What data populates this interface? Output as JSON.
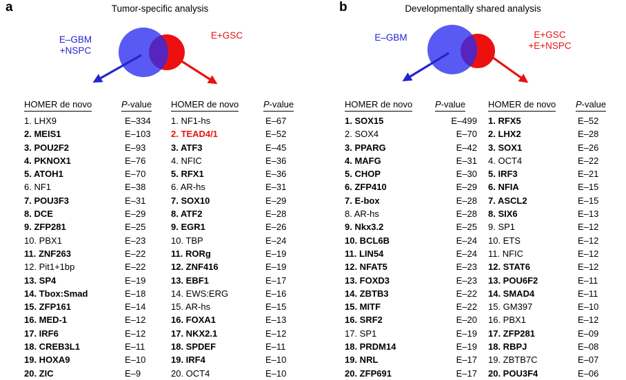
{
  "colors": {
    "label_blue": "#2323d0",
    "label_red": "#e8120e",
    "venn_blue": "#2a2cf0",
    "venn_red": "#ee0f0f"
  },
  "panels": [
    {
      "label": "a",
      "title": "Tumor-specific analysis",
      "venn": {
        "left_label_lines": [
          "E–GBM",
          "+NSPC"
        ],
        "right_label_lines": [
          "E+GSC"
        ]
      },
      "columns": [
        {
          "header": "HOMER de novo",
          "pheader_italic": "P",
          "pheader_rest": "-value",
          "value_align": "left",
          "rows": [
            {
              "rank": 1,
              "name": "LHX9",
              "value": "E–334",
              "bold": false,
              "red": false
            },
            {
              "rank": 2,
              "name": "MEIS1",
              "value": "E–103",
              "bold": true,
              "red": false
            },
            {
              "rank": 3,
              "name": "POU2F2",
              "value": "E–93",
              "bold": true,
              "red": false
            },
            {
              "rank": 4,
              "name": "PKNOX1",
              "value": "E–76",
              "bold": true,
              "red": false
            },
            {
              "rank": 5,
              "name": "ATOH1",
              "value": "E–70",
              "bold": true,
              "red": false
            },
            {
              "rank": 6,
              "name": "NF1",
              "value": "E–38",
              "bold": false,
              "red": false
            },
            {
              "rank": 7,
              "name": "POU3F3",
              "value": "E–31",
              "bold": true,
              "red": false
            },
            {
              "rank": 8,
              "name": "DCE",
              "value": "E–29",
              "bold": true,
              "red": false
            },
            {
              "rank": 9,
              "name": "ZFP281",
              "value": "E–25",
              "bold": true,
              "red": false
            },
            {
              "rank": 10,
              "name": "PBX1",
              "value": "E–23",
              "bold": false,
              "red": false
            },
            {
              "rank": 11,
              "name": "ZNF263",
              "value": "E–22",
              "bold": true,
              "red": false
            },
            {
              "rank": 12,
              "name": "Pit1+1bp",
              "value": "E–22",
              "bold": false,
              "red": false
            },
            {
              "rank": 13,
              "name": "SP4",
              "value": "E–19",
              "bold": true,
              "red": false
            },
            {
              "rank": 14,
              "name": "Tbox:Smad",
              "value": "E–18",
              "bold": true,
              "red": false
            },
            {
              "rank": 15,
              "name": "ZFP161",
              "value": "E–14",
              "bold": true,
              "red": false
            },
            {
              "rank": 16,
              "name": "MED-1",
              "value": "E–12",
              "bold": true,
              "red": false
            },
            {
              "rank": 17,
              "name": "IRF6",
              "value": "E–12",
              "bold": true,
              "red": false
            },
            {
              "rank": 18,
              "name": "CREB3L1",
              "value": "E–11",
              "bold": true,
              "red": false
            },
            {
              "rank": 19,
              "name": "HOXA9",
              "value": "E–10",
              "bold": true,
              "red": false
            },
            {
              "rank": 20,
              "name": "ZIC",
              "value": "E–9",
              "bold": true,
              "red": false
            }
          ]
        },
        {
          "header": "HOMER de novo",
          "pheader_italic": "P",
          "pheader_rest": "-value",
          "value_align": "left",
          "rows": [
            {
              "rank": 1,
              "name": "NF1-hs",
              "value": "E–67",
              "bold": false,
              "red": false
            },
            {
              "rank": 2,
              "name": "TEAD4/1",
              "value": "E–52",
              "bold": true,
              "red": true
            },
            {
              "rank": 3,
              "name": "ATF3",
              "value": "E–45",
              "bold": true,
              "red": false
            },
            {
              "rank": 4,
              "name": "NFIC",
              "value": "E–36",
              "bold": false,
              "red": false
            },
            {
              "rank": 5,
              "name": "RFX1",
              "value": "E–36",
              "bold": true,
              "red": false
            },
            {
              "rank": 6,
              "name": "AR-hs",
              "value": "E–31",
              "bold": false,
              "red": false
            },
            {
              "rank": 7,
              "name": "SOX10",
              "value": "E–29",
              "bold": true,
              "red": false
            },
            {
              "rank": 8,
              "name": "ATF2",
              "value": "E–28",
              "bold": true,
              "red": false
            },
            {
              "rank": 9,
              "name": "EGR1",
              "value": "E–26",
              "bold": true,
              "red": false
            },
            {
              "rank": 10,
              "name": "TBP",
              "value": "E–24",
              "bold": false,
              "red": false
            },
            {
              "rank": 11,
              "name": "RORg",
              "value": "E–19",
              "bold": true,
              "red": false
            },
            {
              "rank": 12,
              "name": "ZNF416",
              "value": "E–19",
              "bold": true,
              "red": false
            },
            {
              "rank": 13,
              "name": "EBF1",
              "value": "E–17",
              "bold": true,
              "red": false
            },
            {
              "rank": 14,
              "name": "EWS:ERG",
              "value": "E–16",
              "bold": false,
              "red": false
            },
            {
              "rank": 15,
              "name": "AR-hs",
              "value": "E–15",
              "bold": false,
              "red": false
            },
            {
              "rank": 16,
              "name": "FOXA1",
              "value": "E–13",
              "bold": true,
              "red": false
            },
            {
              "rank": 17,
              "name": "NKX2.1",
              "value": "E–12",
              "bold": true,
              "red": false
            },
            {
              "rank": 18,
              "name": "SPDEF",
              "value": "E–11",
              "bold": true,
              "red": false
            },
            {
              "rank": 19,
              "name": "IRF4",
              "value": "E–10",
              "bold": true,
              "red": false
            },
            {
              "rank": 20,
              "name": "OCT4",
              "value": "E–10",
              "bold": false,
              "red": false
            }
          ]
        }
      ]
    },
    {
      "label": "b",
      "title": "Developmentally shared analysis",
      "venn": {
        "left_label_lines": [
          "E–GBM"
        ],
        "right_label_lines": [
          "E+GSC",
          "+E+NSPC"
        ]
      },
      "columns": [
        {
          "header": "HOMER de novo",
          "pheader_italic": "P",
          "pheader_rest": "-value",
          "value_align": "right",
          "rows": [
            {
              "rank": 1,
              "name": "SOX15",
              "value": "E–499",
              "bold": true,
              "red": false
            },
            {
              "rank": 2,
              "name": "SOX4",
              "value": "E–70",
              "bold": false,
              "red": false
            },
            {
              "rank": 3,
              "name": "PPARG",
              "value": "E–42",
              "bold": true,
              "red": false
            },
            {
              "rank": 4,
              "name": "MAFG",
              "value": "E–31",
              "bold": true,
              "red": false
            },
            {
              "rank": 5,
              "name": "CHOP",
              "value": "E–30",
              "bold": true,
              "red": false
            },
            {
              "rank": 6,
              "name": "ZFP410",
              "value": "E–29",
              "bold": true,
              "red": false
            },
            {
              "rank": 7,
              "name": "E-box",
              "value": "E–28",
              "bold": true,
              "red": false
            },
            {
              "rank": 8,
              "name": "AR-hs",
              "value": "E–28",
              "bold": false,
              "red": false
            },
            {
              "rank": 9,
              "name": "Nkx3.2",
              "value": "E–25",
              "bold": true,
              "red": false
            },
            {
              "rank": 10,
              "name": "BCL6B",
              "value": "E–24",
              "bold": true,
              "red": false
            },
            {
              "rank": 11,
              "name": "LIN54",
              "value": "E–24",
              "bold": true,
              "red": false
            },
            {
              "rank": 12,
              "name": "NFAT5",
              "value": "E–23",
              "bold": true,
              "red": false
            },
            {
              "rank": 13,
              "name": "FOXD3",
              "value": "E–23",
              "bold": true,
              "red": false
            },
            {
              "rank": 14,
              "name": "ZBTB3",
              "value": "E–22",
              "bold": true,
              "red": false
            },
            {
              "rank": 15,
              "name": "MITF",
              "value": "E–22",
              "bold": true,
              "red": false
            },
            {
              "rank": 16,
              "name": "SRF2",
              "value": "E–20",
              "bold": true,
              "red": false
            },
            {
              "rank": 17,
              "name": "SP1",
              "value": "E–19",
              "bold": false,
              "red": false
            },
            {
              "rank": 18,
              "name": "PRDM14",
              "value": "E–19",
              "bold": true,
              "red": false
            },
            {
              "rank": 19,
              "name": "NRL",
              "value": "E–17",
              "bold": true,
              "red": false
            },
            {
              "rank": 20,
              "name": "ZFP691",
              "value": "E–17",
              "bold": true,
              "red": false
            }
          ]
        },
        {
          "header": "HOMER de novo",
          "pheader_italic": "P",
          "pheader_rest": "-value",
          "value_align": "left",
          "rows": [
            {
              "rank": 1,
              "name": "RFX5",
              "value": "E–52",
              "bold": true,
              "red": false
            },
            {
              "rank": 2,
              "name": "LHX2",
              "value": "E–28",
              "bold": true,
              "red": false
            },
            {
              "rank": 3,
              "name": "SOX1",
              "value": "E–26",
              "bold": true,
              "red": false
            },
            {
              "rank": 4,
              "name": "OCT4",
              "value": "E–22",
              "bold": false,
              "red": false
            },
            {
              "rank": 5,
              "name": "IRF3",
              "value": "E–21",
              "bold": true,
              "red": false
            },
            {
              "rank": 6,
              "name": "NFIA",
              "value": "E–15",
              "bold": true,
              "red": false
            },
            {
              "rank": 7,
              "name": "ASCL2",
              "value": "E–15",
              "bold": true,
              "red": false
            },
            {
              "rank": 8,
              "name": "SIX6",
              "value": "E–13",
              "bold": true,
              "red": false
            },
            {
              "rank": 9,
              "name": "SP1",
              "value": "E–12",
              "bold": false,
              "red": false
            },
            {
              "rank": 10,
              "name": "ETS",
              "value": "E–12",
              "bold": false,
              "red": false
            },
            {
              "rank": 11,
              "name": "NFIC",
              "value": "E–12",
              "bold": false,
              "red": false
            },
            {
              "rank": 12,
              "name": "STAT6",
              "value": "E–12",
              "bold": true,
              "red": false
            },
            {
              "rank": 13,
              "name": "POU6F2",
              "value": "E–11",
              "bold": true,
              "red": false
            },
            {
              "rank": 14,
              "name": "SMAD4",
              "value": "E–11",
              "bold": true,
              "red": false
            },
            {
              "rank": 15,
              "name": "GM397",
              "value": "E–10",
              "bold": false,
              "red": false
            },
            {
              "rank": 16,
              "name": "PBX1",
              "value": "E–12",
              "bold": false,
              "red": false
            },
            {
              "rank": 17,
              "name": "ZFP281",
              "value": "E–09",
              "bold": true,
              "red": false
            },
            {
              "rank": 18,
              "name": "RBPJ",
              "value": "E–08",
              "bold": true,
              "red": false
            },
            {
              "rank": 19,
              "name": "ZBTB7C",
              "value": "E–07",
              "bold": false,
              "red": false
            },
            {
              "rank": 20,
              "name": "POU3F4",
              "value": "E–06",
              "bold": true,
              "red": false
            }
          ]
        }
      ]
    }
  ]
}
